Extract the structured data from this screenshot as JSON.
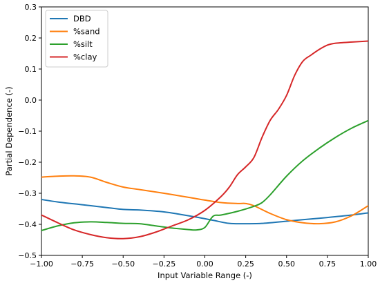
{
  "chart_data": {
    "type": "line",
    "title": "",
    "xlabel": "Input Variable Range (-)",
    "ylabel": "Partial Dependence (-)",
    "xlim": [
      -1.0,
      1.0
    ],
    "ylim": [
      -0.5,
      0.3
    ],
    "xticks": [
      -1.0,
      -0.75,
      -0.5,
      -0.25,
      0.0,
      0.25,
      0.5,
      0.75,
      1.0
    ],
    "xtick_labels": [
      "−1.00",
      "−0.75",
      "−0.50",
      "−0.25",
      "0.00",
      "0.25",
      "0.50",
      "0.75",
      "1.00"
    ],
    "yticks": [
      -0.5,
      -0.4,
      -0.3,
      -0.2,
      -0.1,
      0.0,
      0.1,
      0.2,
      0.3
    ],
    "ytick_labels": [
      "−0.5",
      "−0.4",
      "−0.3",
      "−0.2",
      "−0.1",
      "0.0",
      "0.1",
      "0.2",
      "0.3"
    ],
    "grid": false,
    "legend_position": "top-left",
    "series": [
      {
        "name": "DBD",
        "color": "#1f77b4",
        "x": [
          -1.0,
          -0.9,
          -0.75,
          -0.6,
          -0.5,
          -0.4,
          -0.25,
          -0.15,
          -0.05,
          0.05,
          0.15,
          0.25,
          0.35,
          0.5,
          0.6,
          0.75,
          0.9,
          1.0
        ],
        "y": [
          -0.32,
          -0.328,
          -0.337,
          -0.346,
          -0.352,
          -0.354,
          -0.36,
          -0.368,
          -0.377,
          -0.387,
          -0.397,
          -0.398,
          -0.397,
          -0.39,
          -0.385,
          -0.378,
          -0.37,
          -0.363
        ]
      },
      {
        "name": "%sand",
        "color": "#ff7f0e",
        "x": [
          -1.0,
          -0.9,
          -0.8,
          -0.7,
          -0.6,
          -0.5,
          -0.4,
          -0.25,
          -0.1,
          0.0,
          0.1,
          0.2,
          0.25,
          0.3,
          0.4,
          0.5,
          0.6,
          0.7,
          0.8,
          0.9,
          1.0
        ],
        "y": [
          -0.248,
          -0.245,
          -0.244,
          -0.248,
          -0.265,
          -0.28,
          -0.288,
          -0.3,
          -0.313,
          -0.322,
          -0.33,
          -0.333,
          -0.333,
          -0.34,
          -0.365,
          -0.385,
          -0.395,
          -0.398,
          -0.392,
          -0.372,
          -0.34
        ]
      },
      {
        "name": "%silt",
        "color": "#2ca02c",
        "x": [
          -1.0,
          -0.9,
          -0.8,
          -0.7,
          -0.6,
          -0.5,
          -0.4,
          -0.3,
          -0.2,
          -0.1,
          -0.05,
          0.0,
          0.05,
          0.1,
          0.2,
          0.3,
          0.35,
          0.4,
          0.5,
          0.6,
          0.7,
          0.8,
          0.9,
          1.0
        ],
        "y": [
          -0.42,
          -0.405,
          -0.395,
          -0.392,
          -0.394,
          -0.397,
          -0.398,
          -0.405,
          -0.412,
          -0.417,
          -0.418,
          -0.41,
          -0.374,
          -0.37,
          -0.358,
          -0.342,
          -0.33,
          -0.305,
          -0.245,
          -0.195,
          -0.155,
          -0.12,
          -0.09,
          -0.066
        ]
      },
      {
        "name": "%clay",
        "color": "#d62728",
        "x": [
          -1.0,
          -0.9,
          -0.8,
          -0.7,
          -0.6,
          -0.5,
          -0.4,
          -0.3,
          -0.2,
          -0.1,
          0.0,
          0.1,
          0.15,
          0.2,
          0.25,
          0.3,
          0.35,
          0.4,
          0.45,
          0.5,
          0.55,
          0.6,
          0.65,
          0.7,
          0.75,
          0.8,
          0.9,
          1.0
        ],
        "y": [
          -0.37,
          -0.395,
          -0.418,
          -0.433,
          -0.443,
          -0.446,
          -0.44,
          -0.425,
          -0.405,
          -0.385,
          -0.355,
          -0.31,
          -0.28,
          -0.24,
          -0.215,
          -0.185,
          -0.12,
          -0.065,
          -0.03,
          0.015,
          0.08,
          0.125,
          0.145,
          0.163,
          0.177,
          0.183,
          0.187,
          0.19
        ]
      }
    ]
  }
}
